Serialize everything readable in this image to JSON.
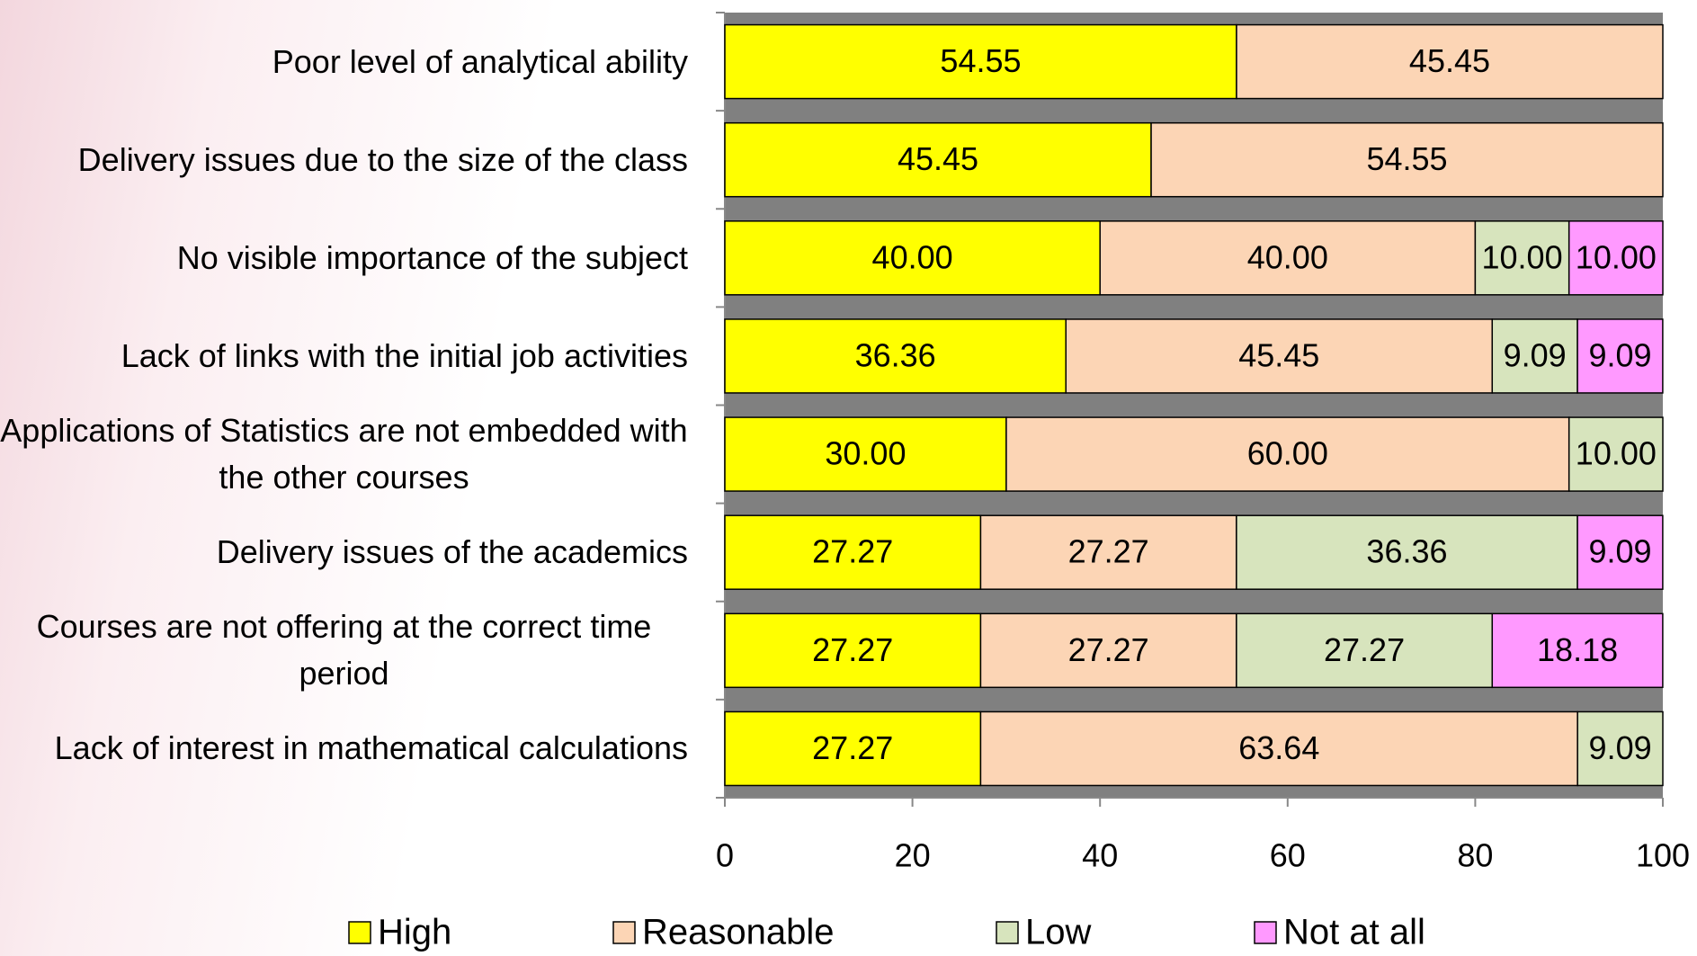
{
  "chart_data": {
    "type": "stacked-barh",
    "categories": [
      "Poor level of analytical ability",
      "Delivery issues due to the size of the class",
      "No visible importance of the subject",
      "Lack of links with the initial job activities",
      "Applications of Statistics are not embedded with the other courses",
      "Delivery issues of the academics",
      "Courses are not offering at the correct time period",
      "Lack of interest in mathematical calculations"
    ],
    "series": [
      {
        "name": "High",
        "color": "#ffff00",
        "values": [
          54.55,
          45.45,
          40,
          36.36,
          30,
          27.27,
          27.27,
          27.27
        ],
        "value_labels": [
          "54.55",
          "45.45",
          "40.00",
          "36.36",
          "30.00",
          "27.27",
          "27.27",
          "27.27"
        ]
      },
      {
        "name": "Reasonable",
        "color": "#fcd5b5",
        "values": [
          45.45,
          54.55,
          40,
          45.45,
          60,
          27.27,
          27.27,
          63.64
        ],
        "value_labels": [
          "45.45",
          "54.55",
          "40.00",
          "45.45",
          "60.00",
          "27.27",
          "27.27",
          "63.64"
        ]
      },
      {
        "name": "Low",
        "color": "#d7e4bd",
        "values": [
          null,
          null,
          10,
          9.09,
          10,
          36.36,
          27.27,
          9.09
        ],
        "value_labels": [
          null,
          null,
          "10.00",
          "9.09",
          "10.00",
          "36.36",
          "27.27",
          "9.09"
        ]
      },
      {
        "name": "Not at all",
        "color": "#ff99ff",
        "values": [
          null,
          null,
          10,
          9.09,
          null,
          9.09,
          18.18,
          null
        ],
        "value_labels": [
          null,
          null,
          "10.00",
          "9.09",
          null,
          "9.09",
          "18.18",
          null
        ]
      }
    ],
    "xlim": [
      0,
      100
    ],
    "xticks": [
      0,
      20,
      40,
      60,
      80,
      100
    ],
    "legend": "bottom"
  }
}
